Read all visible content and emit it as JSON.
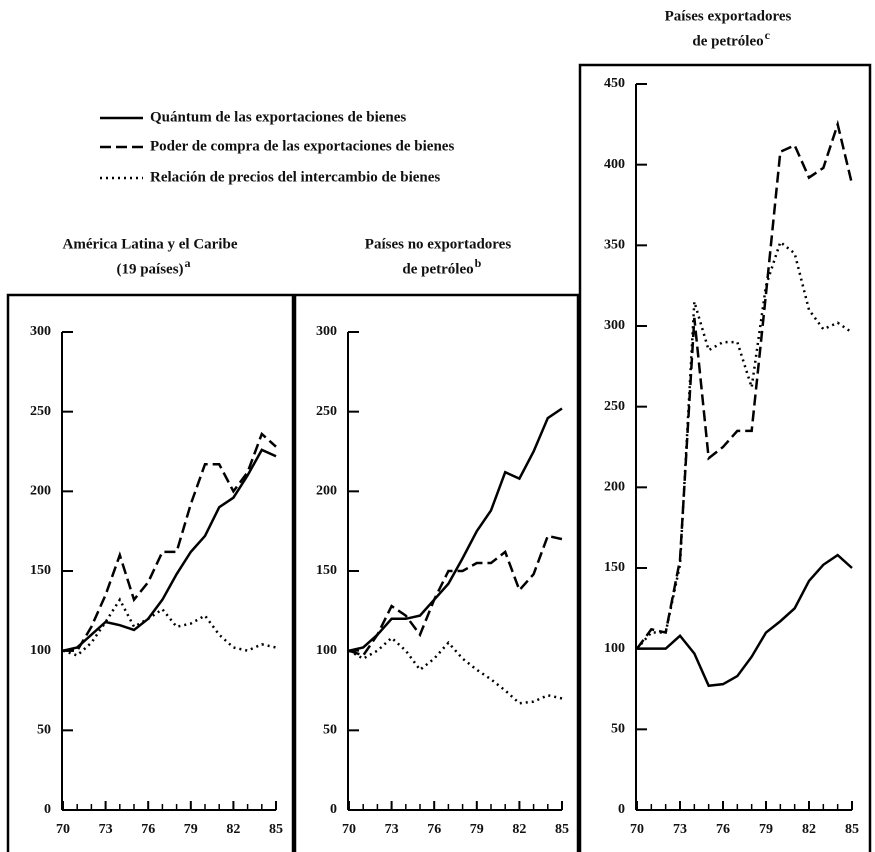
{
  "legend": [
    "Quántum de las exportaciones de bienes",
    "Poder de compra de las exportaciones de bienes",
    "Relación de precios del intercambio de bienes"
  ],
  "chart_data": [
    {
      "type": "line",
      "title": [
        "América Latina y el Caribe",
        "(19 países)"
      ],
      "title_note": "a",
      "x": [
        70,
        71,
        72,
        73,
        74,
        75,
        76,
        77,
        78,
        79,
        80,
        81,
        82,
        83,
        84,
        85
      ],
      "xlim": [
        70,
        85
      ],
      "xticks": [
        70,
        73,
        76,
        79,
        82,
        85
      ],
      "ylim": [
        0,
        300
      ],
      "yticks": [
        0,
        50,
        100,
        150,
        200,
        250,
        300
      ],
      "series": [
        {
          "style": "solid",
          "color": "#000000",
          "values": [
            100,
            102,
            110,
            118,
            116,
            113,
            120,
            132,
            148,
            162,
            172,
            190,
            196,
            210,
            226,
            222
          ]
        },
        {
          "style": "dashed",
          "color": "#000000",
          "values": [
            100,
            100,
            115,
            135,
            160,
            132,
            143,
            162,
            162,
            192,
            217,
            217,
            200,
            212,
            236,
            228
          ]
        },
        {
          "style": "dotted",
          "color": "#000000",
          "values": [
            100,
            97,
            105,
            118,
            132,
            115,
            120,
            126,
            115,
            117,
            122,
            110,
            102,
            100,
            104,
            102
          ]
        }
      ]
    },
    {
      "type": "line",
      "title": [
        "Países no exportadores",
        "de petróleo"
      ],
      "title_note": "b",
      "x": [
        70,
        71,
        72,
        73,
        74,
        75,
        76,
        77,
        78,
        79,
        80,
        81,
        82,
        83,
        84,
        85
      ],
      "xlim": [
        70,
        85
      ],
      "xticks": [
        70,
        73,
        76,
        79,
        82,
        85
      ],
      "ylim": [
        0,
        300
      ],
      "yticks": [
        0,
        50,
        100,
        150,
        200,
        250,
        300
      ],
      "series": [
        {
          "style": "solid",
          "color": "#000000",
          "values": [
            100,
            102,
            110,
            120,
            120,
            122,
            132,
            142,
            158,
            175,
            188,
            212,
            208,
            225,
            246,
            252
          ]
        },
        {
          "style": "dashed",
          "color": "#000000",
          "values": [
            100,
            97,
            110,
            128,
            122,
            110,
            132,
            150,
            150,
            155,
            155,
            162,
            138,
            148,
            172,
            170
          ]
        },
        {
          "style": "dotted",
          "color": "#000000",
          "values": [
            100,
            95,
            100,
            108,
            100,
            88,
            95,
            105,
            95,
            88,
            82,
            75,
            67,
            68,
            72,
            70
          ]
        }
      ]
    },
    {
      "type": "line",
      "title": [
        "Países exportadores",
        "de petróleo"
      ],
      "title_note": "c",
      "x": [
        70,
        71,
        72,
        73,
        74,
        75,
        76,
        77,
        78,
        79,
        80,
        81,
        82,
        83,
        84,
        85
      ],
      "xlim": [
        70,
        85
      ],
      "xticks": [
        70,
        73,
        76,
        79,
        82,
        85
      ],
      "ylim": [
        0,
        450
      ],
      "yticks": [
        0,
        50,
        100,
        150,
        200,
        250,
        300,
        350,
        400,
        450
      ],
      "series": [
        {
          "style": "solid",
          "color": "#000000",
          "values": [
            100,
            100,
            100,
            108,
            97,
            77,
            78,
            83,
            95,
            110,
            117,
            125,
            142,
            152,
            158,
            150
          ]
        },
        {
          "style": "dashed",
          "color": "#000000",
          "values": [
            100,
            112,
            110,
            155,
            305,
            218,
            225,
            235,
            235,
            320,
            408,
            412,
            392,
            398,
            425,
            388
          ]
        },
        {
          "style": "dotted",
          "color": "#000000",
          "values": [
            100,
            110,
            110,
            152,
            315,
            285,
            290,
            290,
            262,
            325,
            352,
            345,
            310,
            298,
            302,
            296
          ]
        }
      ]
    }
  ]
}
